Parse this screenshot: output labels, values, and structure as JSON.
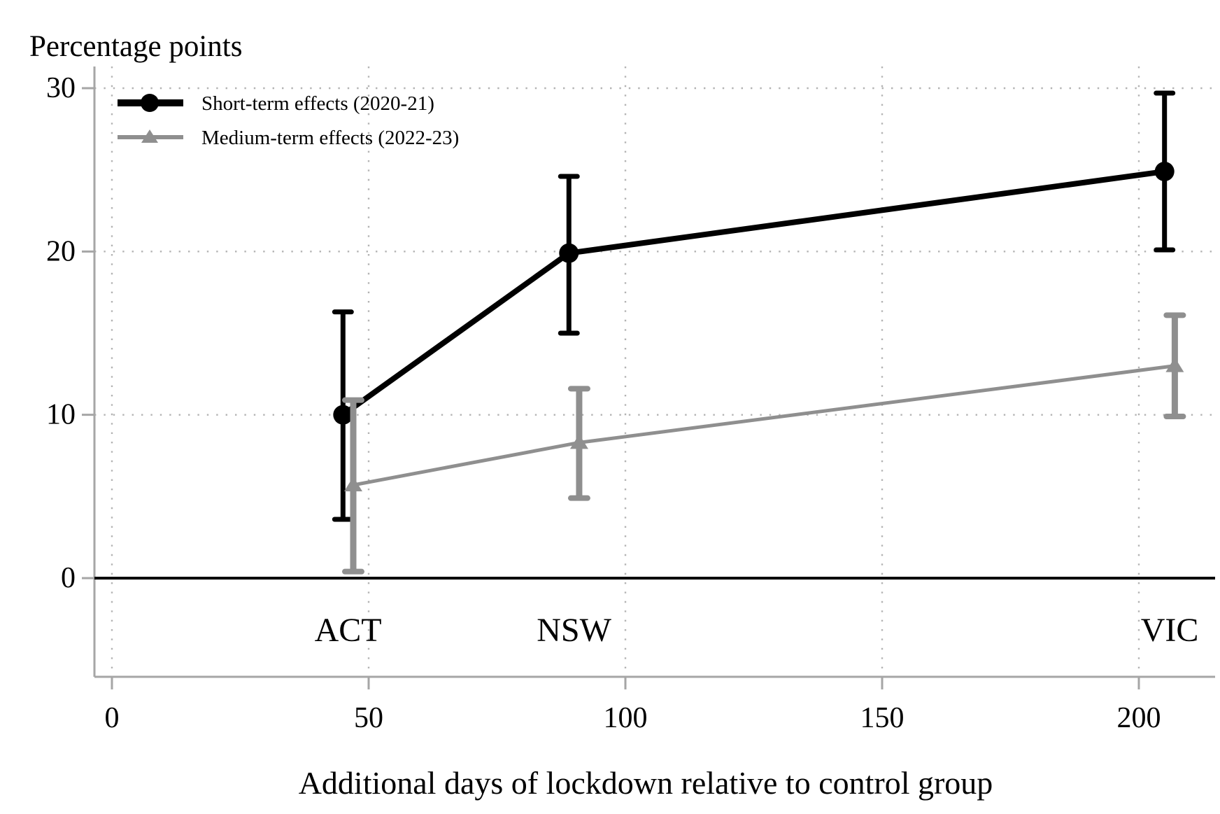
{
  "titles": {
    "y_axis_title": "Percentage points",
    "x_axis_title": "Additional days of lockdown relative to control group"
  },
  "colors": {
    "background": "#ffffff",
    "short_term_series": "#000000",
    "medium_term_series": "#8f8f8f",
    "axis_line": "#a6a6a6",
    "grid_dots": "#b3b3b3",
    "zero_line": "#000000",
    "text": "#000000"
  },
  "chart_data": {
    "type": "line",
    "subtype": "scatter-line-with-error-bars",
    "title": "Percentage points",
    "xlabel": "Additional days of lockdown relative to control group",
    "ylabel": "Percentage points",
    "xlim": [
      -3.5,
      214.5
    ],
    "ylim": [
      -6,
      31.3
    ],
    "x_ticks": [
      0,
      50,
      100,
      150,
      200
    ],
    "y_ticks": [
      0,
      10,
      20,
      30
    ],
    "grid": {
      "on": true,
      "style": "dotted",
      "x_values": [
        0,
        50,
        100,
        150,
        200
      ],
      "y_values": [
        10,
        20,
        30
      ]
    },
    "zero_line_y": 0,
    "legend_position": "top-left-inside",
    "legend_entries": [
      "Short-term effects (2020-21)",
      "Medium-term effects (2022-23)"
    ],
    "categories": [
      "ACT",
      "NSW",
      "VIC"
    ],
    "state_labels": [
      {
        "label": "ACT",
        "x": 46
      },
      {
        "label": "NSW",
        "x": 90
      },
      {
        "label": "VIC",
        "x": 206
      }
    ],
    "series": [
      {
        "name": "Short-term effects (2020-21)",
        "color": "#000000",
        "marker": "circle",
        "line_width": 8,
        "points": [
          {
            "state": "ACT",
            "x": 45,
            "y": 10.0,
            "ci_low": 3.6,
            "ci_high": 16.3
          },
          {
            "state": "NSW",
            "x": 89,
            "y": 19.9,
            "ci_low": 15.0,
            "ci_high": 24.6
          },
          {
            "state": "VIC",
            "x": 205,
            "y": 24.9,
            "ci_low": 20.1,
            "ci_high": 29.7
          }
        ]
      },
      {
        "name": "Medium-term effects (2022-23)",
        "color": "#8f8f8f",
        "marker": "triangle",
        "line_width": 5,
        "points": [
          {
            "state": "ACT",
            "x": 47,
            "y": 5.7,
            "ci_low": 0.4,
            "ci_high": 10.9
          },
          {
            "state": "NSW",
            "x": 91,
            "y": 8.3,
            "ci_low": 4.9,
            "ci_high": 11.6
          },
          {
            "state": "VIC",
            "x": 207,
            "y": 13.0,
            "ci_low": 9.9,
            "ci_high": 16.1
          }
        ]
      }
    ]
  }
}
